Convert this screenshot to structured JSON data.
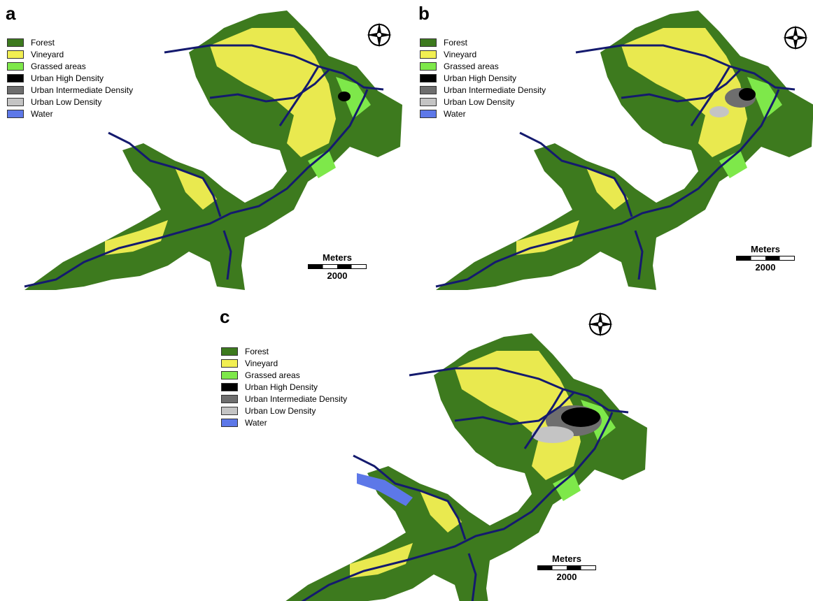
{
  "panels": [
    {
      "letter": "a"
    },
    {
      "letter": "b"
    },
    {
      "letter": "c"
    }
  ],
  "legend": [
    {
      "label": "Forest",
      "color": "#3d7a1e"
    },
    {
      "label": "Vineyard",
      "color": "#f2ef52"
    },
    {
      "label": "Grassed areas",
      "color": "#7ee84a"
    },
    {
      "label": "Urban High Density",
      "color": "#000000"
    },
    {
      "label": "Urban Intermediate Density",
      "color": "#6e6e6e"
    },
    {
      "label": "Urban Low Density",
      "color": "#c4c4c4"
    },
    {
      "label": "Water",
      "color": "#5d78e8"
    }
  ],
  "scale": {
    "title": "Meters",
    "value": "2000"
  },
  "colors": {
    "river": "#141a6e",
    "north_arrow": "#000000"
  },
  "icons": {
    "north_arrow": "compass-rose-icon"
  }
}
